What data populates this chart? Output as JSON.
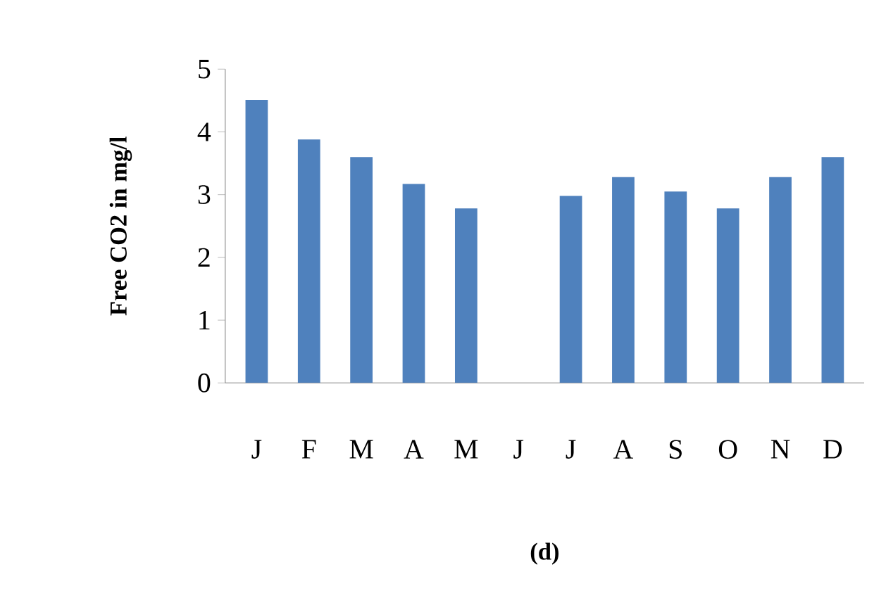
{
  "chart_data": {
    "type": "bar",
    "xlabel": "(d)",
    "ylabel": "Free CO2  in mg/l",
    "categories": [
      "J",
      "F",
      "M",
      "A",
      "M",
      "J",
      "J",
      "A",
      "S",
      "O",
      "N",
      "D"
    ],
    "values": [
      4.51,
      3.88,
      3.6,
      3.17,
      2.78,
      null,
      2.98,
      3.28,
      3.05,
      2.78,
      3.28,
      3.6
    ],
    "color": "#4f81bd",
    "ylim": [
      0,
      5
    ],
    "yticks": [
      0,
      1,
      2,
      3,
      4,
      5
    ],
    "grid": false
  }
}
